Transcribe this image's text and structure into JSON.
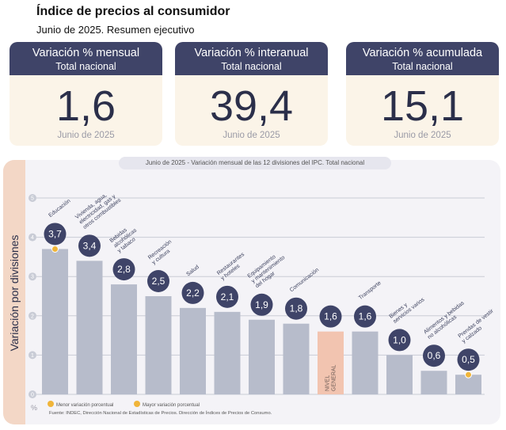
{
  "header": {
    "title": "Índice de precios al consumidor",
    "subtitle": "Junio de 2025. Resumen ejecutivo"
  },
  "cards": [
    {
      "label": "Variación % mensual",
      "scope": "Total nacional",
      "value": "1,6",
      "date": "Junio de 2025"
    },
    {
      "label": "Variación % interanual",
      "scope": "Total nacional",
      "value": "39,4",
      "date": "Junio de 2025"
    },
    {
      "label": "Variación % acumulada",
      "scope": "Total nacional",
      "value": "15,1",
      "date": "Junio de 2025"
    }
  ],
  "chart_tag": "Junio de 2025 - Variación mensual de las 12 divisiones del IPC. Total nacional",
  "side_label": "Variación por divisiones",
  "colors": {
    "navy": "#3f4468",
    "bar": "#b7bccb",
    "general_bar": "#f2c4b0",
    "side": "#f3d7c6",
    "marker": "#f0b53a"
  },
  "chart_data": {
    "type": "bar",
    "ylim": [
      0,
      5
    ],
    "yticks": [
      "0",
      "1",
      "2",
      "3",
      "4",
      "5"
    ],
    "y_unit": "%",
    "grid": true,
    "categories": [
      "Educación",
      "Vivienda, agua, electricidad, gas y otros combustibles",
      "Bebidas alcohólicas y tabaco",
      "Recreación y cultura",
      "Salud",
      "Restaurantes y hoteles",
      "Equipamiento y mantenimiento del hogar",
      "Comunicación",
      "NIVEL GENERAL",
      "Transporte",
      "Bienes y servicios varios",
      "Alimentos y bebidas no alcohólicas",
      "Prendas de vestir y calzado"
    ],
    "category_label_lines": [
      [
        "Educación"
      ],
      [
        "Vivienda, agua,",
        "electricidad, gas y",
        "otros combustibles"
      ],
      [
        "Bebidas",
        "alcohólicas",
        "y tabaco"
      ],
      [
        "Recreación",
        "y cultura"
      ],
      [
        "Salud"
      ],
      [
        "Restaurantes",
        "y hoteles"
      ],
      [
        "Equipamiento",
        "y mantenimiento",
        "del hogar"
      ],
      [
        "Comunicación"
      ],
      [],
      [
        "Transporte"
      ],
      [
        "Bienes y",
        "servicios varios"
      ],
      [
        "Alimentos y bebidas",
        "no alcohólicas"
      ],
      [
        "Prendas de vestir",
        "y calzado"
      ]
    ],
    "values": [
      3.7,
      3.4,
      2.8,
      2.5,
      2.2,
      2.1,
      1.9,
      1.8,
      1.6,
      1.6,
      1.0,
      0.6,
      0.5
    ],
    "value_labels": [
      "3,7",
      "3,4",
      "2,8",
      "2,5",
      "2,2",
      "2,1",
      "1,9",
      "1,8",
      "1,6",
      "1,6",
      "1,0",
      "0,6",
      "0,5"
    ],
    "general_index": 8,
    "general_label_lines": [
      "NIVEL",
      "GENERAL"
    ],
    "highlight_max": 0,
    "highlight_min": 12,
    "legend": [
      {
        "label": "Menor variación porcentual"
      },
      {
        "label": "Mayor variación porcentual"
      }
    ],
    "source": "Fuente: INDEC, Dirección Nacional de Estadísticas de Precios. Dirección de Índices de Precios de Consumo."
  }
}
